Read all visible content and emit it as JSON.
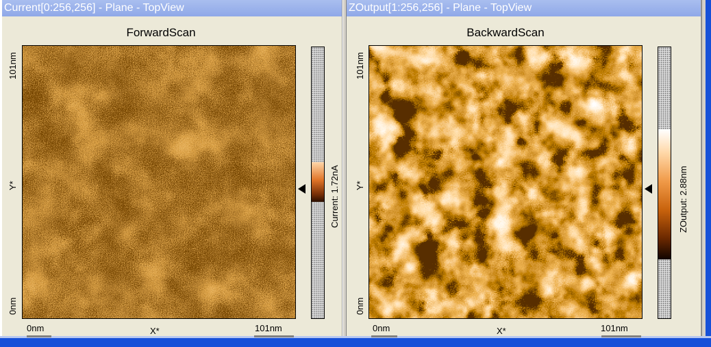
{
  "left_panel": {
    "window_title": "Current[0:256,256] - Plane - TopView",
    "plot_title": "ForwardScan",
    "y_top": "101nm",
    "y_bottom": "0nm",
    "y_mid": "Y*",
    "x_left": "0nm",
    "x_right": "101nm",
    "x_mid": "X*",
    "colorbar_label": "Current: 1.72nA",
    "colors": {
      "dark": "#3A1600",
      "mid": "#E07020",
      "light": "#FFD2A0"
    }
  },
  "right_panel": {
    "window_title": "ZOutput[1:256,256] - Plane - TopView",
    "plot_title": "BackwardScan",
    "y_top": "101nm",
    "y_bottom": "0nm",
    "y_mid": "Y*",
    "x_left": "0nm",
    "x_right": "101nm",
    "x_mid": "X*",
    "colorbar_label": "ZOutput: 2.88nm",
    "colors": {
      "dark": "#1A0800",
      "mid": "#D06010",
      "light": "#FFFFFF"
    }
  },
  "icons": {
    "marker": "left-pointing-triangle-icon"
  }
}
